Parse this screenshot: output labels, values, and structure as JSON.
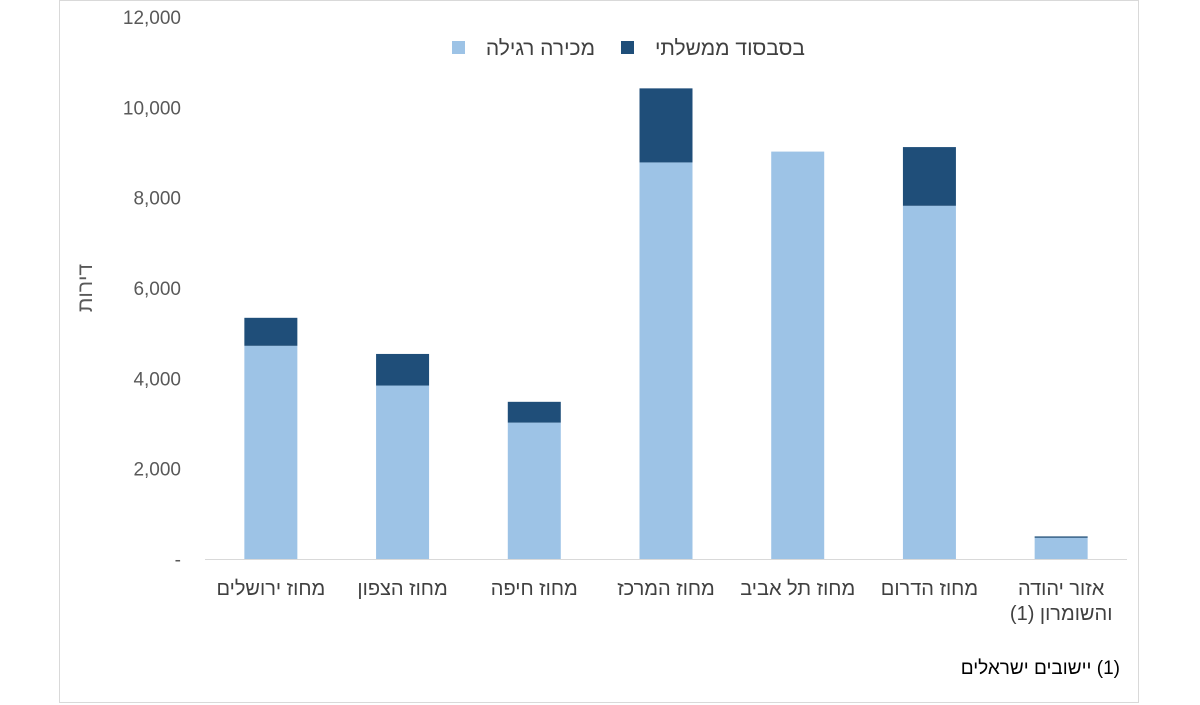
{
  "chart_data": {
    "type": "bar",
    "stacked": true,
    "title": "",
    "xlabel": "",
    "ylabel": "דירות",
    "ylim": [
      0,
      12000
    ],
    "yticks": [
      {
        "value": 0,
        "label": "-"
      },
      {
        "value": 2000,
        "label": "2,000"
      },
      {
        "value": 4000,
        "label": "4,000"
      },
      {
        "value": 6000,
        "label": "6,000"
      },
      {
        "value": 8000,
        "label": "8,000"
      },
      {
        "value": 10000,
        "label": "10,000"
      },
      {
        "value": 12000,
        "label": "12,000"
      }
    ],
    "categories": [
      [
        "מחוז ירושלים"
      ],
      [
        "מחוז הצפון"
      ],
      [
        "מחוז חיפה"
      ],
      [
        "מחוז המרכז"
      ],
      [
        "מחוז תל אביב"
      ],
      [
        "מחוז הדרום"
      ],
      [
        "אזור יהודה",
        "והשומרון (1)"
      ]
    ],
    "series": [
      {
        "name": "מכירה רגילה",
        "color": "#9dc3e6",
        "values": [
          4720,
          3840,
          3020,
          8780,
          9020,
          7820,
          470
        ]
      },
      {
        "name": "בסבסוד ממשלתי",
        "color": "#1f4e79",
        "values": [
          620,
          700,
          460,
          1640,
          0,
          1300,
          30
        ]
      }
    ],
    "legend_position": "top-center",
    "grid": false
  },
  "footnote": "(1)  יישובים ישראלים"
}
